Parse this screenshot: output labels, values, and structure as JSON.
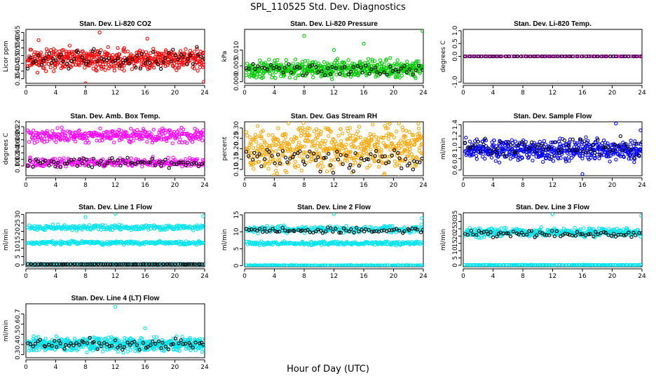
{
  "figure": {
    "title": "SPL_110525  Std. Dev. Diagnostics",
    "xlabel": "Hour of Day (UTC)"
  },
  "chart_data": [
    {
      "type": "scatter",
      "title": "Stan. Dev. Li-820 CO2",
      "ylabel": "Licor ppm",
      "xlim": [
        0,
        24
      ],
      "xticks": [
        "0",
        "4",
        "8",
        "12",
        "16",
        "20",
        "24"
      ],
      "ylim": [
        0.32,
        0.67
      ],
      "yticks": [
        "0.35",
        "0.40",
        "0.45",
        "0.50",
        "0.55",
        "0.60",
        "0.65"
      ],
      "series": [
        {
          "color": "#ff0000",
          "band": [
            0.4,
            0.55
          ],
          "n": 520,
          "seed": 11,
          "outliers": [
            [
              8.0,
              0.32
            ],
            [
              9.9,
              0.65
            ],
            [
              16.3,
              0.61
            ],
            [
              23.9,
              0.33
            ],
            [
              1.7,
              0.6
            ]
          ]
        },
        {
          "color": "#000000",
          "band": [
            0.4,
            0.55
          ],
          "n": 70,
          "seed": 12
        }
      ]
    },
    {
      "type": "scatter",
      "title": "Stan. Dev. Li-820 Pressure",
      "ylabel": "kPa",
      "xlim": [
        0,
        24
      ],
      "xticks": [
        "0",
        "4",
        "8",
        "12",
        "16",
        "20",
        "24"
      ],
      "ylim": [
        -0.0005,
        0.0165
      ],
      "yticks": [
        "0.000",
        "0.005",
        "0.010"
      ],
      "series": [
        {
          "color": "#00cc00",
          "band": [
            0.001,
            0.007
          ],
          "n": 520,
          "seed": 21,
          "outliers": [
            [
              8.0,
              0.0145
            ],
            [
              16.0,
              0.012
            ],
            [
              23.9,
              0.016
            ],
            [
              12.0,
              0.01
            ]
          ]
        },
        {
          "color": "#000000",
          "band": [
            0.002,
            0.006
          ],
          "n": 60,
          "seed": 22
        }
      ]
    },
    {
      "type": "scatter",
      "title": "Stan. Dev. Li-820 Temp.",
      "ylabel": "degrees C",
      "xlim": [
        0,
        24
      ],
      "xticks": [
        "0",
        "4",
        "8",
        "12",
        "16",
        "20",
        "24"
      ],
      "ylim": [
        -1.05,
        1.05
      ],
      "yticks": [
        "-1.0",
        "0.0",
        "0.5",
        "1.0"
      ],
      "series": [
        {
          "color": "#dd00dd",
          "band": [
            0.0,
            0.0
          ],
          "n": 100,
          "seed": 31
        },
        {
          "color": "#000000",
          "band": [
            0.0,
            0.0
          ],
          "n": 45,
          "seed": 32
        }
      ]
    },
    {
      "type": "scatter",
      "title": "Stan. Dev. Amb. Box Temp.",
      "ylabel": "degrees C",
      "xlim": [
        0,
        24
      ],
      "xticks": [
        "0",
        "4",
        "8",
        "12",
        "16",
        "20",
        "24"
      ],
      "ylim": [
        0.07,
        0.235
      ],
      "yticks": [
        "0.10",
        "0.12",
        "0.14",
        "0.16",
        "0.18",
        "0.20",
        "0.22"
      ],
      "series": [
        {
          "color": "#ff00ff",
          "band": [
            0.17,
            0.215
          ],
          "n": 330,
          "seed": 41
        },
        {
          "color": "#ff00ff",
          "band": [
            0.095,
            0.125
          ],
          "n": 260,
          "seed": 42
        },
        {
          "color": "#000000",
          "band": [
            0.095,
            0.125
          ],
          "n": 70,
          "seed": 43
        }
      ]
    },
    {
      "type": "scatter",
      "title": "Stan. Dev. Gas Stream RH",
      "ylabel": "percent",
      "xlim": [
        0,
        24
      ],
      "xticks": [
        "0",
        "4",
        "8",
        "12",
        "16",
        "20",
        "24"
      ],
      "ylim": [
        0.07,
        0.33
      ],
      "yticks": [
        "0.10",
        "0.15",
        "0.20",
        "0.25",
        "0.30"
      ],
      "series": [
        {
          "color": "#ffa500",
          "band": [
            0.08,
            0.32
          ],
          "n": 540,
          "seed": 51
        },
        {
          "color": "#000000",
          "band": [
            0.09,
            0.22
          ],
          "n": 70,
          "seed": 52
        }
      ]
    },
    {
      "type": "scatter",
      "title": "Stan. Dev. Sample Flow",
      "ylabel": "ml/min",
      "xlim": [
        0,
        24
      ],
      "xticks": [
        "0",
        "4",
        "8",
        "12",
        "16",
        "20",
        "24"
      ],
      "ylim": [
        0.5,
        1.45
      ],
      "yticks": [
        "0.6",
        "0.8",
        "1.0",
        "1.2",
        "1.4"
      ],
      "series": [
        {
          "color": "#0000ff",
          "band": [
            0.75,
            1.15
          ],
          "n": 520,
          "seed": 61,
          "outliers": [
            [
              16.0,
              0.53
            ],
            [
              20.5,
              1.42
            ],
            [
              23.8,
              1.3
            ]
          ]
        },
        {
          "color": "#000000",
          "band": [
            0.8,
            1.2
          ],
          "n": 70,
          "seed": 62
        }
      ]
    },
    {
      "type": "scatter",
      "title": "Stan. Dev. Line 1 Flow",
      "ylabel": "ml/min",
      "xlim": [
        0,
        24
      ],
      "xticks": [
        "0",
        "4",
        "8",
        "12",
        "16",
        "20",
        "24"
      ],
      "ylim": [
        -1,
        31
      ],
      "yticks": [
        "0",
        "5",
        "10",
        "15",
        "20",
        "25",
        "30"
      ],
      "series": [
        {
          "color": "#00e5ee",
          "band": [
            20.5,
            24
          ],
          "n": 240,
          "seed": 71,
          "outliers": [
            [
              8.0,
              28.5
            ],
            [
              12.0,
              30.5
            ],
            [
              23.8,
              29
            ]
          ]
        },
        {
          "color": "#00e5ee",
          "band": [
            12,
            14.5
          ],
          "n": 240,
          "seed": 72
        },
        {
          "color": "#00e5ee",
          "band": [
            0.2,
            0.8
          ],
          "n": 180,
          "seed": 73
        },
        {
          "color": "#000000",
          "band": [
            0.4,
            0.6
          ],
          "n": 90,
          "seed": 74
        }
      ]
    },
    {
      "type": "scatter",
      "title": "Stan. Dev. Line 2 Flow",
      "ylabel": "ml/min",
      "xlim": [
        0,
        24
      ],
      "xticks": [
        "0",
        "4",
        "8",
        "12",
        "16",
        "20",
        "24"
      ],
      "ylim": [
        -0.3,
        15.6
      ],
      "yticks": [
        "0",
        "5",
        "10",
        "15"
      ],
      "series": [
        {
          "color": "#00e5ee",
          "band": [
            9.5,
            12.0
          ],
          "n": 240,
          "seed": 81,
          "outliers": [
            [
              12.0,
              15.3
            ],
            [
              23.8,
              14.0
            ]
          ]
        },
        {
          "color": "#00e5ee",
          "band": [
            6.0,
            7.2
          ],
          "n": 240,
          "seed": 82
        },
        {
          "color": "#00e5ee",
          "band": [
            0.0,
            0.2
          ],
          "n": 160,
          "seed": 83
        },
        {
          "color": "#000000",
          "band": [
            9.5,
            11.5
          ],
          "n": 70,
          "seed": 84
        }
      ]
    },
    {
      "type": "scatter",
      "title": "Stan. Dev. Line 3 Flow",
      "ylabel": "ml/min",
      "xlim": [
        0,
        24
      ],
      "xticks": [
        "0",
        "4",
        "8",
        "12",
        "16",
        "20",
        "24"
      ],
      "ylim": [
        -1,
        36
      ],
      "yticks": [
        "0",
        "5",
        "10",
        "15",
        "20",
        "25",
        "30",
        "35"
      ],
      "series": [
        {
          "color": "#00e5ee",
          "band": [
            19,
            26
          ],
          "n": 360,
          "seed": 91,
          "outliers": [
            [
              12.0,
              35.0
            ],
            [
              23.9,
              34.0
            ]
          ]
        },
        {
          "color": "#00e5ee",
          "band": [
            0.0,
            0.4
          ],
          "n": 160,
          "seed": 92
        },
        {
          "color": "#000000",
          "band": [
            19,
            24
          ],
          "n": 70,
          "seed": 93
        }
      ]
    },
    {
      "type": "scatter",
      "title": "Stan. Dev. Line 4 (LT) Flow",
      "ylabel": "ml/min",
      "xlim": [
        0,
        24
      ],
      "xticks": [
        "0",
        "4",
        "8",
        "12",
        "16",
        "20",
        "24"
      ],
      "ylim": [
        0.27,
        0.8
      ],
      "yticks": [
        "0.3",
        "0.4",
        "0.5",
        "0.6",
        "0.7"
      ],
      "series": [
        {
          "color": "#00e5ee",
          "band": [
            0.33,
            0.48
          ],
          "n": 520,
          "seed": 101,
          "outliers": [
            [
              12.0,
              0.77
            ],
            [
              16.0,
              0.56
            ]
          ]
        },
        {
          "color": "#000000",
          "band": [
            0.35,
            0.46
          ],
          "n": 70,
          "seed": 102
        }
      ]
    }
  ]
}
